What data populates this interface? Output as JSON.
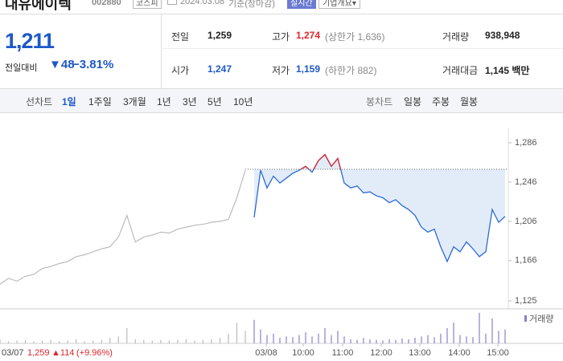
{
  "header": {
    "name": "대유에이텍",
    "code": "002880",
    "market": "코스피",
    "date": "2024.03.08",
    "basis": "기준(장마감)",
    "realtime": "실시간",
    "company": "기업개요"
  },
  "quote": {
    "price": "1,211",
    "change_label": "전일대비",
    "change": "48",
    "change_rate": "−3.81%"
  },
  "stats": [
    {
      "label": "전일",
      "value": "1,259"
    },
    {
      "label": "고가",
      "value": "1,274",
      "note": "(상한가 1,636)"
    },
    {
      "label": "거래량",
      "value": "938,948"
    },
    {
      "label": "시가",
      "value": "1,247"
    },
    {
      "label": "저가",
      "value": "1,159",
      "note": "(하한가 882)"
    },
    {
      "label": "거래대금",
      "value": "1,145 백만"
    }
  ],
  "tabs": {
    "line_label": "선차트",
    "periods": [
      "1일",
      "1주일",
      "3개월",
      "1년",
      "3년",
      "5년",
      "10년"
    ],
    "candle_label": "봉차트",
    "candles": [
      "일봉",
      "주봉",
      "월봉"
    ]
  },
  "chart": {
    "ylim": [
      1125,
      1286
    ],
    "yticks": [
      {
        "value": 1286,
        "label": "1,286"
      },
      {
        "value": 1246,
        "label": "1,246"
      },
      {
        "value": 1206,
        "label": "1,206"
      },
      {
        "value": 1166,
        "label": "1,166"
      },
      {
        "value": 1125,
        "label": "1,125"
      }
    ],
    "previous_close": 1259,
    "x_labels": [
      "03/08",
      "10:00",
      "11:00",
      "12:00",
      "13:00",
      "14:00",
      "15:00"
    ],
    "volume_legend": "거래량",
    "prev_day": {
      "date": "03/07",
      "close": "1,259",
      "change": "114",
      "change_rate": "(+9.96%)",
      "values": [
        1142,
        1148,
        1145,
        1150,
        1152,
        1158,
        1160,
        1163,
        1165,
        1170,
        1172,
        1175,
        1178,
        1180,
        1190,
        1212,
        1185,
        1190,
        1192,
        1195,
        1194,
        1198,
        1200,
        1202,
        1203,
        1205,
        1206,
        1208,
        1230,
        1258
      ],
      "volume": [
        6,
        3,
        4,
        5,
        3,
        4,
        5,
        3,
        4,
        6,
        3,
        4,
        5,
        8,
        10,
        22,
        6,
        5,
        4,
        5,
        4,
        5,
        6,
        4,
        5,
        6,
        8,
        14,
        30,
        18
      ]
    },
    "today": {
      "values": [
        1210,
        1258,
        1240,
        1252,
        1245,
        1250,
        1255,
        1258,
        1262,
        1256,
        1268,
        1274,
        1262,
        1270,
        1245,
        1240,
        1242,
        1235,
        1236,
        1232,
        1230,
        1225,
        1228,
        1222,
        1218,
        1212,
        1200,
        1195,
        1198,
        1180,
        1165,
        1180,
        1175,
        1185,
        1178,
        1170,
        1175,
        1218,
        1205,
        1211
      ],
      "volume": [
        34,
        20,
        12,
        14,
        8,
        10,
        9,
        12,
        16,
        10,
        14,
        22,
        12,
        18,
        10,
        6,
        5,
        8,
        6,
        5,
        4,
        6,
        5,
        7,
        6,
        8,
        10,
        12,
        9,
        14,
        22,
        30,
        12,
        10,
        9,
        44,
        14,
        36,
        18,
        20
      ]
    }
  }
}
